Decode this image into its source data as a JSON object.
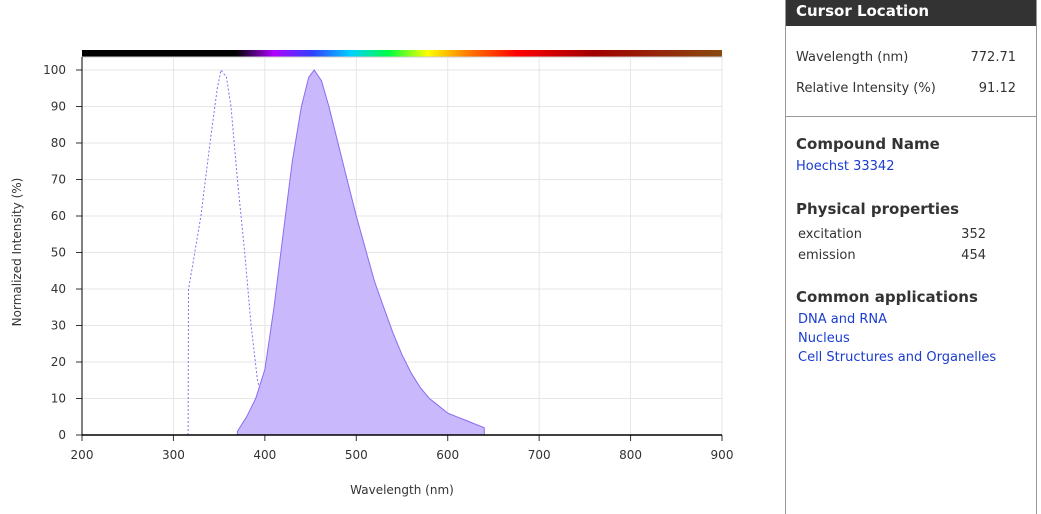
{
  "chart_data": {
    "type": "area",
    "xlabel": "Wavelength (nm)",
    "ylabel": "Normalized Intensity (%)",
    "xlim": [
      200,
      900
    ],
    "xticks": [
      200,
      300,
      400,
      500,
      600,
      700,
      800,
      900
    ],
    "ylim": [
      0,
      100
    ],
    "yticks": [
      0,
      10,
      20,
      30,
      40,
      50,
      60,
      70,
      80,
      90,
      100
    ],
    "grid": true,
    "series": [
      {
        "color": "#8c6cf0",
        "dashed": true,
        "filled": false,
        "x": [
          316,
          316.5,
          320,
          330,
          340,
          348,
          352,
          358,
          363,
          370,
          378,
          385,
          392,
          400,
          410,
          420,
          428
        ],
        "values": [
          0,
          40,
          45,
          60,
          80,
          95,
          100,
          98,
          90,
          70,
          50,
          30,
          15,
          7,
          3,
          1,
          0.5
        ]
      },
      {
        "color": "#8c6cf0",
        "fill": "#c9b8fb",
        "dashed": false,
        "filled": true,
        "x": [
          370,
          380,
          390,
          400,
          410,
          420,
          430,
          440,
          448,
          454,
          462,
          470,
          480,
          490,
          500,
          510,
          520,
          530,
          540,
          550,
          560,
          570,
          580,
          590,
          600,
          610,
          620,
          630,
          640
        ],
        "values": [
          1,
          5,
          10,
          18,
          35,
          55,
          75,
          90,
          98,
          100,
          97,
          90,
          80,
          70,
          60,
          51,
          42,
          35,
          28,
          22,
          17,
          13,
          10,
          8,
          6,
          5,
          4,
          3,
          2
        ]
      }
    ]
  },
  "panel": {
    "cursor": {
      "title": "Cursor Location",
      "rows": [
        [
          "Wavelength (nm)",
          772.71
        ],
        [
          "Relative Intensity (%)",
          91.12
        ]
      ]
    },
    "compound": {
      "title": "Compound Name",
      "name": "Hoechst 33342"
    },
    "properties": {
      "title": "Physical properties",
      "rows": [
        [
          "excitation",
          352
        ],
        [
          "emission",
          454
        ]
      ]
    },
    "applications": {
      "title": "Common applications",
      "items": [
        "DNA and RNA",
        "Nucleus",
        "Cell Structures and Organelles"
      ]
    }
  }
}
